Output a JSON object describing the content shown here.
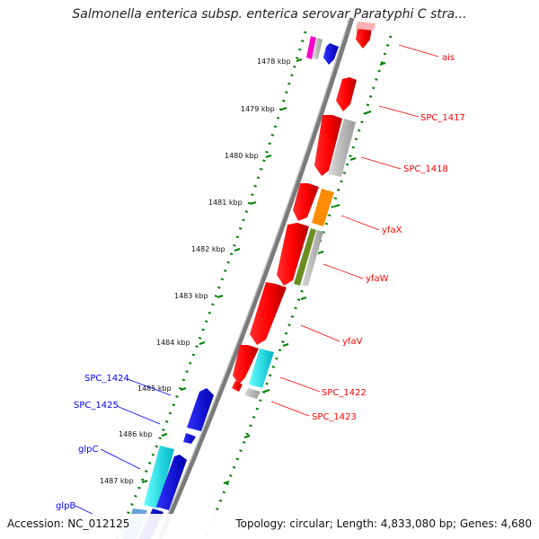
{
  "title": "Salmonella enterica subsp. enterica serovar Paratyphi C stra...",
  "accession": "Accession: NC_012125",
  "topology": "Topology: circular; Length: 4,833,080 bp; Genes: 4,680",
  "colors": {
    "red_gene": "#ff0000",
    "blue_gene": "#0000ff",
    "cyan_gene": "#00e5e5",
    "orange_gene": "#ff8c00",
    "olive_gene": "#6b8e23",
    "grey_gene": "#b8b8b8",
    "magenta_gene": "#ff00ff",
    "tick_green": "#008000",
    "backbone": "#808080"
  },
  "kbp_ticks": [
    {
      "label": "1478 kbp"
    },
    {
      "label": "1479 kbp"
    },
    {
      "label": "1480 kbp"
    },
    {
      "label": "1481 kbp"
    },
    {
      "label": "1482 kbp"
    },
    {
      "label": "1483 kbp"
    },
    {
      "label": "1484 kbp"
    },
    {
      "label": "1485 kbp"
    },
    {
      "label": "1486 kbp"
    },
    {
      "label": "1487 kbp"
    }
  ],
  "gene_labels_right": [
    {
      "label": "ais",
      "color": "#ff0000"
    },
    {
      "label": "SPC_1417",
      "color": "#ff0000"
    },
    {
      "label": "SPC_1418",
      "color": "#ff0000"
    },
    {
      "label": "yfaX",
      "color": "#ff0000"
    },
    {
      "label": "yfaW",
      "color": "#ff0000"
    },
    {
      "label": "yfaV",
      "color": "#ff0000"
    },
    {
      "label": "SPC_1422",
      "color": "#ff0000"
    },
    {
      "label": "SPC_1423",
      "color": "#ff0000"
    }
  ],
  "gene_labels_left": [
    {
      "label": "SPC_1424",
      "color": "#0000ff"
    },
    {
      "label": "SPC_1425",
      "color": "#0000ff"
    },
    {
      "label": "glpC",
      "color": "#0000ff"
    },
    {
      "label": "glpB",
      "color": "#0000ff"
    }
  ]
}
